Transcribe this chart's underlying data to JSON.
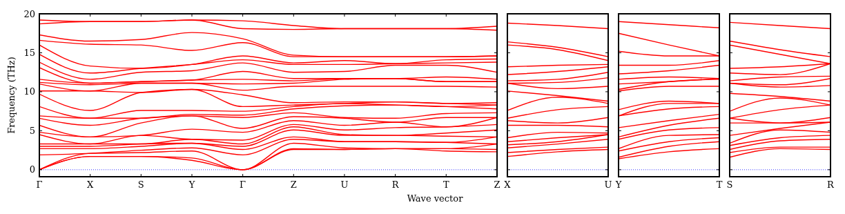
{
  "chart_data": [
    {
      "type": "line",
      "xlabel": "Wave vector",
      "ylabel": "Frequency (THz)",
      "categories": [
        "Γ",
        "X",
        "S",
        "Y",
        "Γ",
        "Z",
        "U",
        "R",
        "T",
        "Z"
      ],
      "ylim": [
        -0.9,
        20
      ],
      "yticks": [
        0,
        5,
        10,
        15,
        20
      ],
      "grid": false,
      "line_style": "solid",
      "ref_lines": [
        {
          "axis": "y",
          "value": 0,
          "color": "#0000ff",
          "line_style": "dotted"
        }
      ],
      "series": [
        {
          "color": "#ff0000",
          "values": [
            0,
            1.7,
            1.7,
            1.2,
            0,
            2.6,
            2.6,
            2.7,
            2.4,
            2.3
          ]
        },
        {
          "color": "#ff0000",
          "values": [
            0,
            1.7,
            1.7,
            1.5,
            0,
            2.7,
            2.6,
            2.7,
            2.7,
            2.6
          ]
        },
        {
          "color": "#ff0000",
          "values": [
            0,
            2.1,
            2.2,
            2.4,
            0,
            3.4,
            2.8,
            2.7,
            2.7,
            3.3
          ]
        },
        {
          "color": "#ff0000",
          "values": [
            1.9,
            2.1,
            2.5,
            2.8,
            1.9,
            3.9,
            3.6,
            3.6,
            3.5,
            3.3
          ]
        },
        {
          "color": "#ff0000",
          "values": [
            2.7,
            2.7,
            3.0,
            3.4,
            2.6,
            4.2,
            3.6,
            3.6,
            3.5,
            4.2
          ]
        },
        {
          "color": "#ff0000",
          "values": [
            3.0,
            3.0,
            3.3,
            3.4,
            3.0,
            5.1,
            4.4,
            4.4,
            4.3,
            4.2
          ]
        },
        {
          "color": "#ff0000",
          "values": [
            3.3,
            3.3,
            3.3,
            3.9,
            3.3,
            5.5,
            4.5,
            4.4,
            4.7,
            5.1
          ]
        },
        {
          "color": "#ff0000",
          "values": [
            4.5,
            3.3,
            4.4,
            3.9,
            3.8,
            5.8,
            5.1,
            5.4,
            5.5,
            5.8
          ]
        },
        {
          "color": "#ff0000",
          "values": [
            4.8,
            4.2,
            4.4,
            5.2,
            4.8,
            6.3,
            5.7,
            6.1,
            5.5,
            6.7
          ]
        },
        {
          "color": "#ff0000",
          "values": [
            5.7,
            4.2,
            6.0,
            6.9,
            5.3,
            6.8,
            6.6,
            6.1,
            6.7,
            6.7
          ]
        },
        {
          "color": "#ff0000",
          "values": [
            6.6,
            5.7,
            6.6,
            6.9,
            6.7,
            7.3,
            6.7,
            6.6,
            7.2,
            7.3
          ]
        },
        {
          "color": "#ff0000",
          "values": [
            6.9,
            6.6,
            6.6,
            7.1,
            7.0,
            7.8,
            8.2,
            8.3,
            8.1,
            7.8
          ]
        },
        {
          "color": "#ff0000",
          "values": [
            8.1,
            6.6,
            7.6,
            7.6,
            7.5,
            8.1,
            8.5,
            8.3,
            8.1,
            8.3
          ]
        },
        {
          "color": "#ff0000",
          "values": [
            9.7,
            7.6,
            9.9,
            10.3,
            8.1,
            8.3,
            8.5,
            8.7,
            8.5,
            8.3
          ]
        },
        {
          "color": "#ff0000",
          "values": [
            10.1,
            10.1,
            9.9,
            10.3,
            9.6,
            8.6,
            8.7,
            8.7,
            8.5,
            8.6
          ]
        },
        {
          "color": "#ff0000",
          "values": [
            11.0,
            10.1,
            11.1,
            11.1,
            10.2,
            10.7,
            10.7,
            10.7,
            10.7,
            10.6
          ]
        },
        {
          "color": "#ff0000",
          "values": [
            11.2,
            10.9,
            11.1,
            11.1,
            11.0,
            11.1,
            11.6,
            11.7,
            11.3,
            11.3
          ]
        },
        {
          "color": "#ff0000",
          "values": [
            11.6,
            11.1,
            11.3,
            11.5,
            11.6,
            11.4,
            11.7,
            11.7,
            11.3,
            11.3
          ]
        },
        {
          "color": "#ff0000",
          "values": [
            13.1,
            11.1,
            11.3,
            11.5,
            12.6,
            11.7,
            11.7,
            11.7,
            11.9,
            11.6
          ]
        },
        {
          "color": "#ff0000",
          "values": [
            13.8,
            11.6,
            12.5,
            12.7,
            13.7,
            12.5,
            12.6,
            13.4,
            13.4,
            12.5
          ]
        },
        {
          "color": "#ff0000",
          "values": [
            14.8,
            12.4,
            13.0,
            13.5,
            14.1,
            13.5,
            13.5,
            13.6,
            13.7,
            13.8
          ]
        },
        {
          "color": "#ff0000",
          "values": [
            16.0,
            13.3,
            13.0,
            13.5,
            14.6,
            13.7,
            14.0,
            13.6,
            14.1,
            14.2
          ]
        },
        {
          "color": "#ff0000",
          "values": [
            16.6,
            16.1,
            16.0,
            15.3,
            16.3,
            14.5,
            14.5,
            14.5,
            14.5,
            14.6
          ]
        },
        {
          "color": "#ff0000",
          "values": [
            17.3,
            16.5,
            16.7,
            17.6,
            16.8,
            14.7,
            14.5,
            14.5,
            14.5,
            14.6
          ]
        },
        {
          "color": "#ff0000",
          "values": [
            18.7,
            19.0,
            19.0,
            19.2,
            18.1,
            18.0,
            18.1,
            18.1,
            18.1,
            17.9
          ]
        },
        {
          "color": "#ff0000",
          "values": [
            19.2,
            19.0,
            19.0,
            19.2,
            19.1,
            18.5,
            18.1,
            18.1,
            18.1,
            18.4
          ]
        }
      ]
    },
    {
      "type": "line",
      "categories": [
        "X",
        null,
        "U"
      ],
      "ylim": [
        -0.9,
        20
      ],
      "yticks": [
        0,
        5,
        10,
        15,
        20
      ],
      "tick_labels": "x",
      "grid": false,
      "line_style": "solid",
      "ref_lines": [
        {
          "axis": "y",
          "value": 0,
          "color": "#0000ff",
          "line_style": "dotted"
        }
      ],
      "series": [
        {
          "color": "#ff0000",
          "values": [
            1.7,
            2.3,
            2.6
          ]
        },
        {
          "color": "#ff0000",
          "values": [
            2.2,
            2.6,
            2.9
          ]
        },
        {
          "color": "#ff0000",
          "values": [
            2.8,
            3.3,
            3.9
          ]
        },
        {
          "color": "#ff0000",
          "values": [
            3.2,
            3.6,
            4.5
          ]
        },
        {
          "color": "#ff0000",
          "values": [
            3.6,
            4.1,
            4.5
          ]
        },
        {
          "color": "#ff0000",
          "values": [
            4.1,
            4.8,
            4.7
          ]
        },
        {
          "color": "#ff0000",
          "values": [
            5.7,
            5.7,
            5.5
          ]
        },
        {
          "color": "#ff0000",
          "values": [
            6.3,
            6.0,
            6.7
          ]
        },
        {
          "color": "#ff0000",
          "values": [
            6.6,
            7.7,
            8.1
          ]
        },
        {
          "color": "#ff0000",
          "values": [
            7.6,
            9.3,
            8.5
          ]
        },
        {
          "color": "#ff0000",
          "values": [
            10.1,
            9.5,
            8.8
          ]
        },
        {
          "color": "#ff0000",
          "values": [
            11.1,
            10.4,
            10.7
          ]
        },
        {
          "color": "#ff0000",
          "values": [
            11.1,
            11.2,
            11.8
          ]
        },
        {
          "color": "#ff0000",
          "values": [
            11.4,
            11.6,
            12.5
          ]
        },
        {
          "color": "#ff0000",
          "values": [
            12.2,
            12.6,
            13.2
          ]
        },
        {
          "color": "#ff0000",
          "values": [
            13.2,
            13.4,
            13.5
          ]
        },
        {
          "color": "#ff0000",
          "values": [
            16.0,
            15.4,
            14.0
          ]
        },
        {
          "color": "#ff0000",
          "values": [
            16.4,
            15.7,
            14.5
          ]
        },
        {
          "color": "#ff0000",
          "values": [
            18.8,
            18.5,
            18.1
          ]
        }
      ]
    },
    {
      "type": "line",
      "categories": [
        "Y",
        null,
        "T"
      ],
      "ylim": [
        -0.9,
        20
      ],
      "yticks": [
        0,
        5,
        10,
        15,
        20
      ],
      "tick_labels": "x",
      "grid": false,
      "line_style": "solid",
      "ref_lines": [
        {
          "axis": "y",
          "value": 0,
          "color": "#0000ff",
          "line_style": "dotted"
        }
      ],
      "series": [
        {
          "color": "#ff0000",
          "values": [
            1.4,
            2.3,
            2.7
          ]
        },
        {
          "color": "#ff0000",
          "values": [
            1.6,
            3.0,
            3.6
          ]
        },
        {
          "color": "#ff0000",
          "values": [
            2.4,
            3.6,
            4.1
          ]
        },
        {
          "color": "#ff0000",
          "values": [
            2.7,
            4.4,
            4.5
          ]
        },
        {
          "color": "#ff0000",
          "values": [
            3.9,
            5.1,
            5.4
          ]
        },
        {
          "color": "#ff0000",
          "values": [
            4.2,
            5.7,
            6.6
          ]
        },
        {
          "color": "#ff0000",
          "values": [
            5.4,
            6.3,
            7.1
          ]
        },
        {
          "color": "#ff0000",
          "values": [
            6.9,
            7.8,
            8.1
          ]
        },
        {
          "color": "#ff0000",
          "values": [
            6.9,
            8.5,
            8.5
          ]
        },
        {
          "color": "#ff0000",
          "values": [
            7.7,
            8.8,
            8.5
          ]
        },
        {
          "color": "#ff0000",
          "values": [
            10.1,
            10.7,
            10.7
          ]
        },
        {
          "color": "#ff0000",
          "values": [
            10.3,
            11.3,
            11.6
          ]
        },
        {
          "color": "#ff0000",
          "values": [
            11.0,
            11.3,
            11.7
          ]
        },
        {
          "color": "#ff0000",
          "values": [
            11.6,
            11.9,
            11.7
          ]
        },
        {
          "color": "#ff0000",
          "values": [
            12.3,
            12.7,
            13.4
          ]
        },
        {
          "color": "#ff0000",
          "values": [
            13.4,
            13.4,
            14.0
          ]
        },
        {
          "color": "#ff0000",
          "values": [
            15.2,
            14.6,
            14.6
          ]
        },
        {
          "color": "#ff0000",
          "values": [
            17.5,
            16.0,
            14.6
          ]
        },
        {
          "color": "#ff0000",
          "values": [
            19.0,
            18.6,
            18.2
          ]
        }
      ]
    },
    {
      "type": "line",
      "categories": [
        "S",
        null,
        "R"
      ],
      "ylim": [
        -0.9,
        20
      ],
      "yticks": [
        0,
        5,
        10,
        15,
        20
      ],
      "tick_labels": "x",
      "grid": false,
      "line_style": "solid",
      "ref_lines": [
        {
          "axis": "y",
          "value": 0,
          "color": "#0000ff",
          "line_style": "dotted"
        }
      ],
      "series": [
        {
          "color": "#ff0000",
          "values": [
            1.6,
            2.7,
            2.6
          ]
        },
        {
          "color": "#ff0000",
          "values": [
            2.2,
            2.9,
            2.9
          ]
        },
        {
          "color": "#ff0000",
          "values": [
            2.6,
            3.7,
            3.9
          ]
        },
        {
          "color": "#ff0000",
          "values": [
            3.1,
            4.1,
            4.4
          ]
        },
        {
          "color": "#ff0000",
          "values": [
            3.4,
            5.1,
            4.8
          ]
        },
        {
          "color": "#ff0000",
          "values": [
            4.4,
            5.3,
            6.1
          ]
        },
        {
          "color": "#ff0000",
          "values": [
            6.0,
            6.0,
            6.1
          ]
        },
        {
          "color": "#ff0000",
          "values": [
            6.6,
            6.0,
            6.7
          ]
        },
        {
          "color": "#ff0000",
          "values": [
            6.6,
            7.7,
            8.3
          ]
        },
        {
          "color": "#ff0000",
          "values": [
            7.5,
            9.2,
            8.3
          ]
        },
        {
          "color": "#ff0000",
          "values": [
            9.8,
            9.4,
            8.8
          ]
        },
        {
          "color": "#ff0000",
          "values": [
            11.1,
            10.6,
            10.8
          ]
        },
        {
          "color": "#ff0000",
          "values": [
            11.1,
            10.9,
            11.7
          ]
        },
        {
          "color": "#ff0000",
          "values": [
            11.4,
            11.9,
            12.0
          ]
        },
        {
          "color": "#ff0000",
          "values": [
            12.4,
            12.2,
            13.6
          ]
        },
        {
          "color": "#ff0000",
          "values": [
            13.0,
            13.2,
            13.6
          ]
        },
        {
          "color": "#ff0000",
          "values": [
            16.0,
            14.8,
            13.6
          ]
        },
        {
          "color": "#ff0000",
          "values": [
            16.5,
            15.4,
            14.5
          ]
        },
        {
          "color": "#ff0000",
          "values": [
            18.9,
            18.5,
            18.1
          ]
        }
      ]
    }
  ]
}
